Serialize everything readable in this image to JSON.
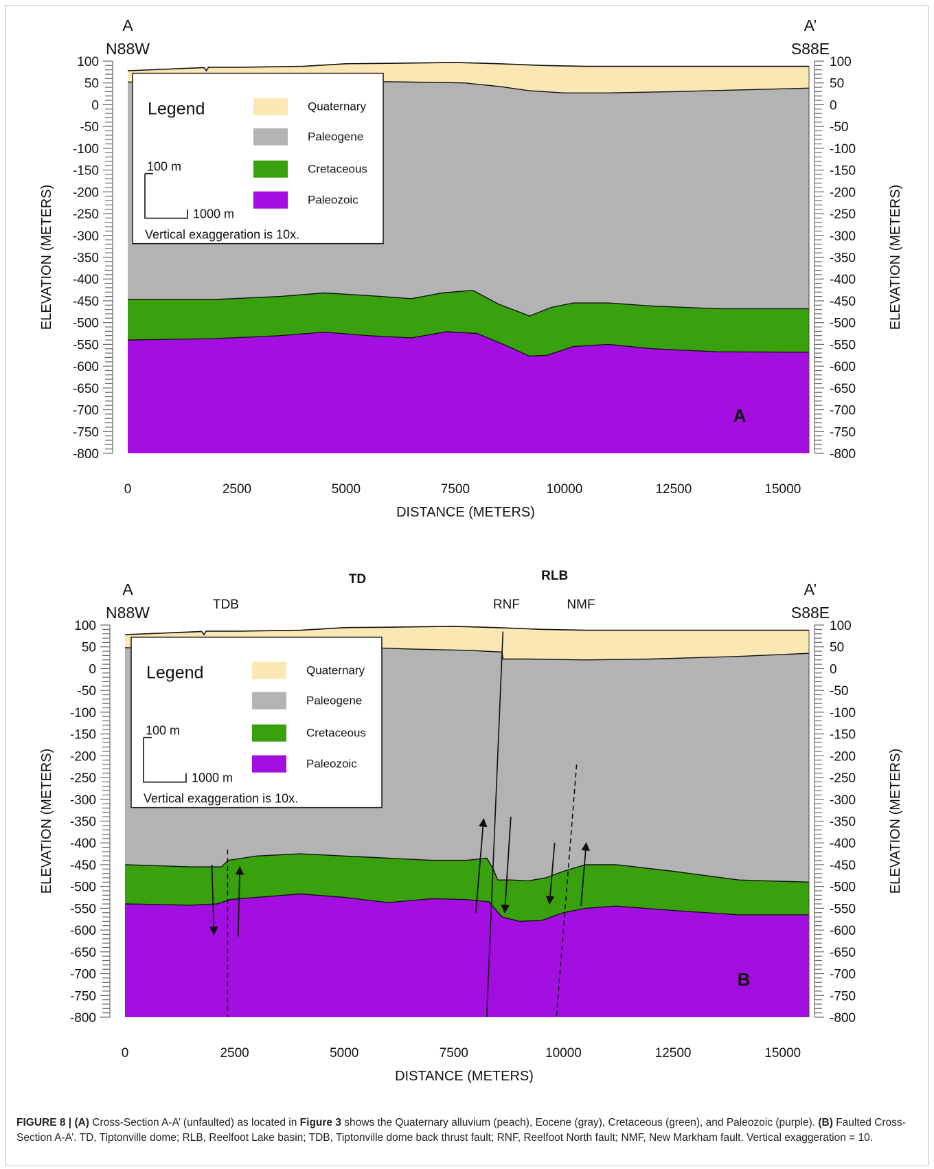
{
  "figure_label": "FIGURE 8 |",
  "caption_parts": [
    {
      "t": "FIGURE 8 | ",
      "b": true
    },
    {
      "t": "(A)",
      "b": true
    },
    {
      "t": " Cross-Section A-A’ (unfaulted) as located in ",
      "b": false
    },
    {
      "t": "Figure 3",
      "b": true
    },
    {
      "t": " shows the Quaternary alluvium (peach), Eocene (gray), Cretaceous (green), and Paleozoic (purple). ",
      "b": false
    },
    {
      "t": "(B)",
      "b": true
    },
    {
      "t": " Faulted Cross-Section A-A’. TD, Tiptonville dome; RLB, Reelfoot Lake basin; TDB, Tiptonville dome back thrust fault; RNF, Reelfoot North fault; NMF, New Markham fault. Vertical exaggeration = 10.",
      "b": false
    }
  ],
  "colors": {
    "quaternary": "#fbe7b3",
    "paleogene": "#b3b3b3",
    "cretaceous": "#3aa10e",
    "paleozoic": "#a30fe0",
    "line": "#111111"
  },
  "chart_data": [
    {
      "type": "area",
      "panel": "A",
      "panel_letter": "A",
      "left_label_top": "A",
      "left_label_bottom": "N88W",
      "right_label_top": "A’",
      "right_label_bottom": "S88E",
      "xlabel": "DISTANCE (METERS)",
      "ylabel_left": "ELEVATION (METERS)",
      "ylabel_right": "ELEVATION (METERS)",
      "xlim": [
        0,
        15600
      ],
      "ylim": [
        -800,
        100
      ],
      "xticks": [
        0,
        2500,
        5000,
        7500,
        10000,
        12500,
        15000
      ],
      "yticks": [
        100,
        50,
        0,
        -50,
        -100,
        -150,
        -200,
        -250,
        -300,
        -350,
        -400,
        -450,
        -500,
        -550,
        -600,
        -650,
        -700,
        -750,
        -800
      ],
      "top_labels": [],
      "legend": {
        "title": "Legend",
        "items": [
          {
            "label": "Quaternary",
            "color_key": "quaternary"
          },
          {
            "label": "Paleogene",
            "color_key": "paleogene"
          },
          {
            "label": "Cretaceous",
            "color_key": "cretaceous"
          },
          {
            "label": "Paleozoic",
            "color_key": "paleozoic"
          }
        ],
        "scale_vertical": "100 m",
        "scale_horizontal": "1000 m",
        "note": "Vertical exaggeration is 10x."
      },
      "series": [
        {
          "name": "Quaternary",
          "color_key": "quaternary",
          "x": [
            0,
            1000,
            1750,
            1800,
            1850,
            2600,
            4000,
            5000,
            6000,
            7500,
            8500,
            9500,
            10500,
            12000,
            14000,
            15600
          ],
          "y": [
            78,
            82,
            85,
            78,
            86,
            86,
            88,
            94,
            95,
            97,
            94,
            90,
            88,
            88,
            88,
            88
          ]
        },
        {
          "name": "Paleogene",
          "color_key": "paleogene",
          "x": [
            0,
            1500,
            3000,
            4500,
            6500,
            7700,
            8500,
            9200,
            10000,
            11000,
            12500,
            14000,
            15600
          ],
          "y": [
            52,
            52,
            54,
            55,
            52,
            50,
            42,
            32,
            27,
            27,
            30,
            34,
            38
          ]
        },
        {
          "name": "Cretaceous",
          "color_key": "cretaceous",
          "x": [
            0,
            2000,
            3500,
            4500,
            5500,
            6500,
            7200,
            7900,
            8500,
            9200,
            9700,
            10200,
            11000,
            12000,
            13500,
            15600
          ],
          "y": [
            -447,
            -447,
            -440,
            -432,
            -438,
            -445,
            -432,
            -426,
            -458,
            -485,
            -465,
            -455,
            -455,
            -462,
            -468,
            -468
          ]
        },
        {
          "name": "Paleozoic",
          "color_key": "paleozoic",
          "x": [
            0,
            2000,
            3500,
            4500,
            5500,
            6500,
            7300,
            8000,
            8600,
            9200,
            9600,
            10200,
            11000,
            12000,
            13500,
            15600
          ],
          "y": [
            -540,
            -537,
            -530,
            -522,
            -530,
            -535,
            -521,
            -525,
            -550,
            -577,
            -575,
            -555,
            -550,
            -560,
            -567,
            -568
          ]
        }
      ],
      "faults": [],
      "arrows": []
    },
    {
      "type": "area",
      "panel": "B",
      "panel_letter": "B",
      "left_label_top": "A",
      "left_label_bottom": "N88W",
      "right_label_top": "A’",
      "right_label_bottom": "S88E",
      "xlabel": "DISTANCE (METERS)",
      "ylabel_left": "ELEVATION (METERS)",
      "ylabel_right": "ELEVATION (METERS)",
      "xlim": [
        0,
        15600
      ],
      "ylim": [
        -800,
        100
      ],
      "xticks": [
        0,
        2500,
        5000,
        7500,
        10000,
        12500,
        15000
      ],
      "yticks": [
        100,
        50,
        0,
        -50,
        -100,
        -150,
        -200,
        -250,
        -300,
        -350,
        -400,
        -450,
        -500,
        -550,
        -600,
        -650,
        -700,
        -750,
        -800
      ],
      "top_labels": [
        {
          "text": "TD",
          "x": 5300,
          "row": "bold"
        },
        {
          "text": "RLB",
          "x": 9800,
          "row": "bold-high"
        },
        {
          "text": "TDB",
          "x": 2300,
          "row": "fault"
        },
        {
          "text": "RNF",
          "x": 8700,
          "row": "fault"
        },
        {
          "text": "NMF",
          "x": 10400,
          "row": "fault"
        }
      ],
      "legend": {
        "title": "Legend",
        "items": [
          {
            "label": "Quaternary",
            "color_key": "quaternary"
          },
          {
            "label": "Paleogene",
            "color_key": "paleogene"
          },
          {
            "label": "Cretaceous",
            "color_key": "cretaceous"
          },
          {
            "label": "Paleozoic",
            "color_key": "paleozoic"
          }
        ],
        "scale_vertical": "100 m",
        "scale_horizontal": "1000 m",
        "note": "Vertical exaggeration is 10x."
      },
      "series": [
        {
          "name": "Quaternary",
          "color_key": "quaternary",
          "x": [
            0,
            1000,
            1750,
            1800,
            1850,
            2600,
            4000,
            5000,
            6000,
            7500,
            8500,
            9500,
            10500,
            12000,
            14000,
            15600
          ],
          "y": [
            78,
            82,
            85,
            78,
            86,
            86,
            88,
            94,
            95,
            97,
            94,
            90,
            88,
            88,
            88,
            88
          ]
        },
        {
          "name": "Paleogene",
          "color_key": "paleogene",
          "x": [
            0,
            1500,
            2320,
            2330,
            3500,
            5000,
            6500,
            7800,
            8600,
            8620,
            9200,
            10500,
            12000,
            14000,
            15600
          ],
          "y": [
            48,
            45,
            45,
            56,
            54,
            50,
            45,
            42,
            38,
            22,
            22,
            20,
            22,
            28,
            35
          ]
        },
        {
          "name": "Cretaceous",
          "color_key": "cretaceous",
          "x": [
            0,
            1500,
            2200,
            2350,
            3000,
            4000,
            5000,
            6000,
            7000,
            7800,
            8250,
            8400,
            8500,
            8800,
            9200,
            9600,
            10000,
            10500,
            11200,
            12500,
            14000,
            15600
          ],
          "y": [
            -450,
            -455,
            -455,
            -440,
            -430,
            -425,
            -430,
            -435,
            -440,
            -440,
            -435,
            -460,
            -485,
            -485,
            -487,
            -480,
            -465,
            -450,
            -450,
            -465,
            -485,
            -490
          ]
        },
        {
          "name": "Paleozoic",
          "color_key": "paleozoic",
          "x": [
            0,
            1500,
            2100,
            2400,
            3000,
            4000,
            5000,
            6000,
            7000,
            7800,
            8300,
            8600,
            9000,
            9500,
            10000,
            10500,
            11200,
            12500,
            14000,
            15600
          ],
          "y": [
            -540,
            -543,
            -540,
            -530,
            -525,
            -517,
            -525,
            -537,
            -528,
            -530,
            -535,
            -570,
            -580,
            -578,
            -560,
            -550,
            -545,
            -555,
            -565,
            -565
          ]
        }
      ],
      "faults": [
        {
          "name": "TDB",
          "style": "dashed",
          "x1": 2350,
          "y1": 55,
          "x2": 2350,
          "y2": 40
        },
        {
          "name": "TDB",
          "style": "dashed",
          "x1": 2340,
          "y1": -415,
          "x2": 2340,
          "y2": -800
        },
        {
          "name": "RNF",
          "style": "solid",
          "x1": 8620,
          "y1": 85,
          "x2": 8250,
          "y2": -800
        },
        {
          "name": "NMF",
          "style": "dashed",
          "x1": 10300,
          "y1": -220,
          "x2": 9840,
          "y2": -800
        }
      ],
      "arrows": [
        {
          "x1": 1980,
          "y1": -450,
          "x2": 2030,
          "y2": -610
        },
        {
          "x1": 2580,
          "y1": -615,
          "x2": 2620,
          "y2": -455
        },
        {
          "x1": 8000,
          "y1": -560,
          "x2": 8180,
          "y2": -345
        },
        {
          "x1": 8800,
          "y1": -340,
          "x2": 8660,
          "y2": -560
        },
        {
          "x1": 9800,
          "y1": -400,
          "x2": 9680,
          "y2": -540
        },
        {
          "x1": 10400,
          "y1": -545,
          "x2": 10520,
          "y2": -400
        }
      ]
    }
  ]
}
